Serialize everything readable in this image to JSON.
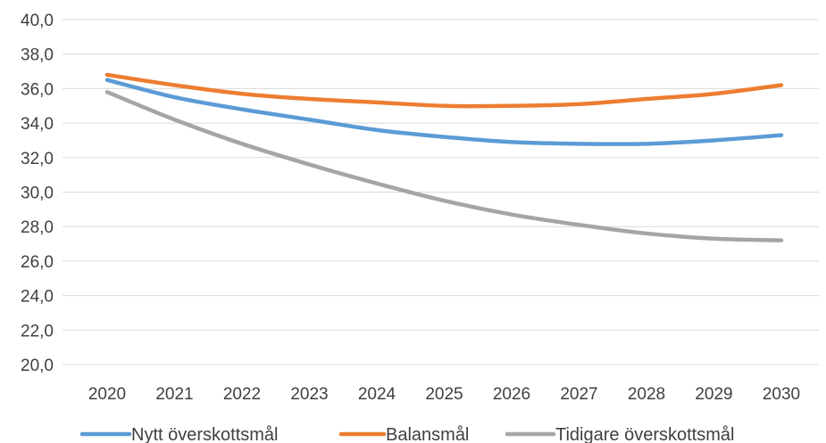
{
  "chart_data": {
    "type": "line",
    "title": "",
    "xlabel": "",
    "ylabel": "",
    "categories": [
      "2020",
      "2021",
      "2022",
      "2023",
      "2024",
      "2025",
      "2026",
      "2027",
      "2028",
      "2029",
      "2030"
    ],
    "y_ticks": [
      "40,0",
      "38,0",
      "36,0",
      "34,0",
      "32,0",
      "30,0",
      "28,0",
      "26,0",
      "24,0",
      "22,0",
      "20,0"
    ],
    "ylim": [
      20,
      40
    ],
    "grid": true,
    "legend_position": "bottom",
    "series": [
      {
        "name": "Nytt överskottsmål",
        "color": "#5b9bd5",
        "values": [
          36.5,
          35.5,
          34.8,
          34.2,
          33.6,
          33.2,
          32.9,
          32.8,
          32.8,
          33.0,
          33.3
        ]
      },
      {
        "name": "Balansmål",
        "color": "#ed7d31",
        "values": [
          36.8,
          36.2,
          35.7,
          35.4,
          35.2,
          35.0,
          35.0,
          35.1,
          35.4,
          35.7,
          36.2
        ]
      },
      {
        "name": "Tidigare överskottsmål",
        "color": "#a5a5a5",
        "values": [
          35.8,
          34.2,
          32.8,
          31.6,
          30.5,
          29.5,
          28.7,
          28.1,
          27.6,
          27.3,
          27.2
        ]
      }
    ]
  }
}
